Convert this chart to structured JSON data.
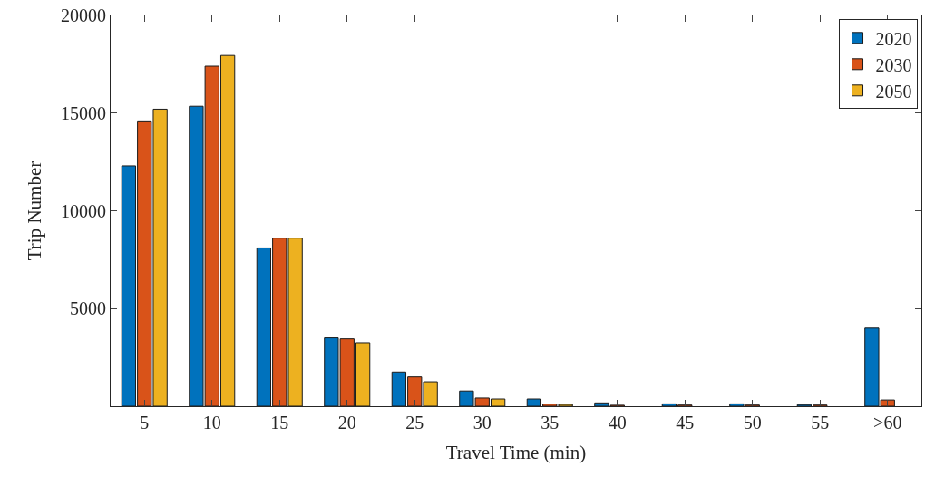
{
  "chart_data": {
    "type": "bar",
    "xlabel": "Travel Time (min)",
    "ylabel": "Trip Number",
    "categories": [
      "5",
      "10",
      "15",
      "20",
      "25",
      "30",
      "35",
      "40",
      "45",
      "50",
      "55",
      ">60"
    ],
    "series": [
      {
        "name": "2020",
        "color": "#0072bd",
        "values": [
          12300,
          15350,
          8100,
          3500,
          1750,
          780,
          370,
          170,
          120,
          120,
          80,
          4000
        ]
      },
      {
        "name": "2030",
        "color": "#d95319",
        "values": [
          14600,
          17400,
          8600,
          3450,
          1500,
          420,
          110,
          50,
          60,
          60,
          60,
          320
        ]
      },
      {
        "name": "2050",
        "color": "#edb120",
        "values": [
          15200,
          17950,
          8600,
          3250,
          1250,
          370,
          90,
          null,
          null,
          null,
          null,
          null
        ]
      }
    ],
    "ylim": [
      0,
      20000
    ],
    "yticks": [
      5000,
      10000,
      15000,
      20000
    ],
    "legend": "top right"
  }
}
